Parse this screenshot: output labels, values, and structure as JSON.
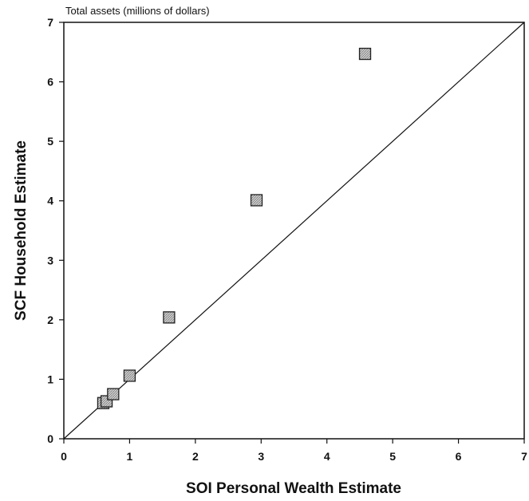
{
  "chart_data": {
    "type": "scatter",
    "title": "Total assets (millions of dollars)",
    "xlabel": "SOI Personal Wealth Estimate",
    "ylabel": "SCF Household Estimate",
    "xlim": [
      0,
      7
    ],
    "ylim": [
      0,
      7
    ],
    "x_ticks": [
      "0",
      "1",
      "2",
      "3",
      "4",
      "5",
      "6",
      "7"
    ],
    "y_ticks": [
      "0",
      "1",
      "2",
      "3",
      "4",
      "5",
      "6",
      "7"
    ],
    "grid": false,
    "reference_line": "y = x",
    "points": [
      {
        "x": 0.6,
        "y": 0.6
      },
      {
        "x": 0.65,
        "y": 0.63
      },
      {
        "x": 0.75,
        "y": 0.75
      },
      {
        "x": 1.0,
        "y": 1.06
      },
      {
        "x": 1.6,
        "y": 2.04
      },
      {
        "x": 2.93,
        "y": 4.01
      },
      {
        "x": 4.58,
        "y": 6.47
      }
    ],
    "marker": "hatched-square",
    "colors": {
      "marker_fill": "#c8c8c8",
      "marker_stroke": "#222222",
      "axis": "#111111"
    }
  }
}
